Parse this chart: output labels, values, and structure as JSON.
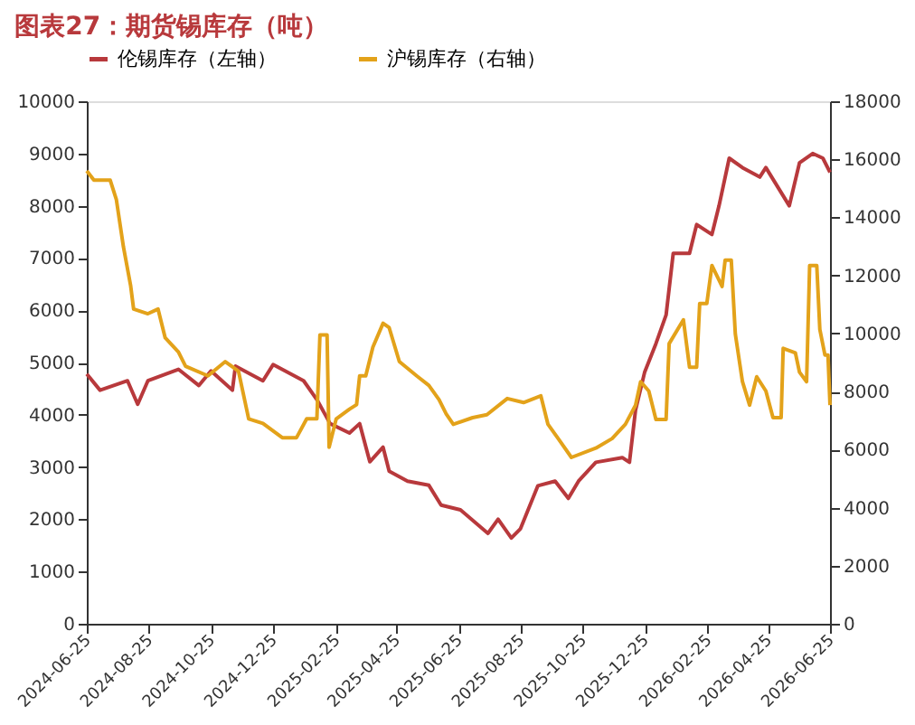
{
  "chart_data": {
    "type": "line",
    "title": "图表27：期货锡库存（吨）",
    "legend": "top",
    "grid": false,
    "marker": "none",
    "line_style": "solid",
    "xlim": [
      "2024-06-25",
      "2026-06-25"
    ],
    "xticks": [
      "2024-06-25",
      "2024-08-25",
      "2024-10-25",
      "2024-12-25",
      "2025-02-25",
      "2025-04-25",
      "2025-06-25",
      "2025-08-25",
      "2025-10-25",
      "2025-12-25",
      "2026-02-25",
      "2026-04-25",
      "2026-06-25"
    ],
    "ylim": [
      0,
      10000
    ],
    "yticks": [
      0,
      1000,
      2000,
      3000,
      4000,
      5000,
      6000,
      7000,
      8000,
      9000,
      10000
    ],
    "y2lim": [
      0,
      18000
    ],
    "y2ticks": [
      0,
      2000,
      4000,
      6000,
      8000,
      10000,
      12000,
      14000,
      16000,
      18000
    ],
    "series": [
      {
        "name": "伦锡库存（左轴）",
        "color": "#b8393c",
        "axis": "y",
        "x": [
          "2024-06-25",
          "2024-07-08",
          "2024-08-04",
          "2024-08-14",
          "2024-08-24",
          "2024-09-23",
          "2024-10-13",
          "2024-10-25",
          "2024-11-15",
          "2024-11-18",
          "2024-12-15",
          "2024-12-25",
          "2025-01-24",
          "2025-02-06",
          "2025-02-19",
          "2025-03-10",
          "2025-03-20",
          "2025-03-30",
          "2025-04-12",
          "2025-04-18",
          "2025-05-06",
          "2025-05-27",
          "2025-06-08",
          "2025-06-27",
          "2025-07-24",
          "2025-08-03",
          "2025-08-16",
          "2025-08-25",
          "2025-09-11",
          "2025-09-28",
          "2025-10-11",
          "2025-10-21",
          "2025-11-07",
          "2025-12-03",
          "2025-12-10",
          "2025-12-16",
          "2025-12-25",
          "2026-01-05",
          "2026-01-15",
          "2026-01-22",
          "2026-02-07",
          "2026-02-14",
          "2026-03-01",
          "2026-03-08",
          "2026-03-18",
          "2026-03-31",
          "2026-04-17",
          "2026-04-23",
          "2026-05-16",
          "2026-05-26",
          "2026-06-08",
          "2026-06-18",
          "2026-06-25"
        ],
        "values": [
          4780,
          4470,
          4650,
          4200,
          4650,
          4870,
          4560,
          4840,
          4470,
          4930,
          4650,
          4960,
          4650,
          4290,
          3830,
          3650,
          3830,
          3100,
          3380,
          2920,
          2730,
          2650,
          2270,
          2180,
          1730,
          2000,
          1640,
          1820,
          2640,
          2730,
          2400,
          2730,
          3090,
          3180,
          3090,
          4090,
          4820,
          5360,
          5910,
          7090,
          7090,
          7640,
          7450,
          8000,
          8910,
          8730,
          8550,
          8730,
          8000,
          8820,
          9000,
          8910,
          8640
        ]
      },
      {
        "name": "沪锡库存（右轴）",
        "color": "#e3a21a",
        "axis": "y2",
        "x": [
          "2024-06-25",
          "2024-07-02",
          "2024-07-18",
          "2024-07-24",
          "2024-07-31",
          "2024-08-07",
          "2024-08-10",
          "2024-08-24",
          "2024-09-03",
          "2024-09-10",
          "2024-09-23",
          "2024-09-30",
          "2024-10-22",
          "2024-11-08",
          "2024-11-21",
          "2024-12-01",
          "2024-12-15",
          "2025-01-03",
          "2025-01-17",
          "2025-01-27",
          "2025-02-06",
          "2025-02-09",
          "2025-02-16",
          "2025-02-18",
          "2025-02-25",
          "2025-03-10",
          "2025-03-17",
          "2025-03-20",
          "2025-03-26",
          "2025-04-02",
          "2025-04-12",
          "2025-04-18",
          "2025-04-28",
          "2025-05-15",
          "2025-05-27",
          "2025-06-06",
          "2025-06-13",
          "2025-06-20",
          "2025-07-09",
          "2025-07-23",
          "2025-08-12",
          "2025-08-28",
          "2025-09-14",
          "2025-09-21",
          "2025-10-01",
          "2025-10-14",
          "2025-11-07",
          "2025-11-23",
          "2025-12-06",
          "2025-12-16",
          "2025-12-21",
          "2025-12-29",
          "2026-01-05",
          "2026-01-15",
          "2026-01-18",
          "2026-02-01",
          "2026-02-07",
          "2026-02-14",
          "2026-02-17",
          "2026-02-24",
          "2026-03-01",
          "2026-03-11",
          "2026-03-14",
          "2026-03-20",
          "2026-03-24",
          "2026-03-31",
          "2026-04-07",
          "2026-04-14",
          "2026-04-23",
          "2026-04-30",
          "2026-05-08",
          "2026-05-10",
          "2026-05-22",
          "2026-05-26",
          "2026-06-02",
          "2026-06-05",
          "2026-06-12",
          "2026-06-15",
          "2026-06-20",
          "2026-06-23",
          "2026-06-25"
        ],
        "values": [
          15600,
          15280,
          15280,
          14620,
          12980,
          11660,
          10840,
          10680,
          10840,
          9850,
          9360,
          8870,
          8540,
          9030,
          8700,
          7060,
          6900,
          6410,
          6410,
          7060,
          7060,
          9950,
          9950,
          6080,
          7060,
          7390,
          7550,
          8540,
          8540,
          9530,
          10350,
          10200,
          9030,
          8540,
          8210,
          7720,
          7230,
          6870,
          7100,
          7200,
          7760,
          7620,
          7850,
          6870,
          6380,
          5730,
          6050,
          6380,
          6870,
          7530,
          8340,
          8020,
          7040,
          7040,
          9650,
          10470,
          8840,
          8840,
          11030,
          11030,
          12340,
          11620,
          12530,
          12530,
          9980,
          8340,
          7530,
          8510,
          8020,
          7100,
          7100,
          9490,
          9330,
          8670,
          8340,
          12340,
          12340,
          10140,
          9260,
          9260,
          7530
        ]
      }
    ]
  }
}
